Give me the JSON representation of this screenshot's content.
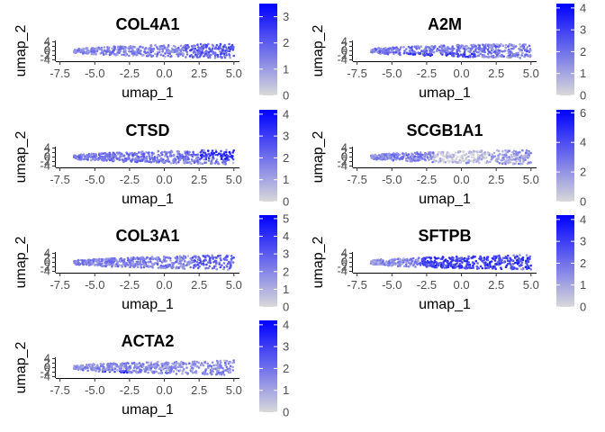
{
  "chart_data": [
    {
      "type": "scatter",
      "title": "COL4A1",
      "xlabel": "umap_1",
      "ylabel": "umap_2",
      "xticks": [
        "-7.5",
        "-5.0",
        "-2.5",
        "0.0",
        "2.5",
        "5.0"
      ],
      "yticks": [
        "4",
        "2",
        "0",
        "-2",
        "-4"
      ],
      "xlim": [
        -7.8,
        5.4
      ],
      "ylim": [
        -4.6,
        4.6
      ],
      "legend": {
        "ticks": [
          "3",
          "2",
          "1",
          "0"
        ],
        "max": 3.5,
        "low_color": "#d9d9d9",
        "high_color": "#0000ff"
      },
      "shape": {
        "x": [
          -6.5,
          5.0
        ],
        "half_height": [
          0.6,
          3.3
        ]
      },
      "clusters": [
        {
          "x": [
            -6.5,
            5.0
          ],
          "y": [
            -2.5,
            2.5
          ],
          "level": 0.4
        },
        {
          "x": [
            1.5,
            5.0
          ],
          "y": [
            -3,
            3
          ],
          "level": 0.55
        }
      ]
    },
    {
      "type": "scatter",
      "title": "A2M",
      "xlabel": "umap_1",
      "ylabel": "umap_2",
      "xticks": [
        "-7.5",
        "-5.0",
        "-2.5",
        "0.0",
        "2.5",
        "5.0"
      ],
      "yticks": [
        "4",
        "2",
        "0",
        "-2",
        "-4"
      ],
      "xlim": [
        -7.8,
        5.4
      ],
      "ylim": [
        -4.6,
        4.6
      ],
      "legend": {
        "ticks": [
          "4",
          "3",
          "2",
          "1",
          "0"
        ],
        "max": 4.2,
        "low_color": "#d9d9d9",
        "high_color": "#0000ff"
      },
      "shape": {
        "x": [
          -6.5,
          5.0
        ],
        "half_height": [
          0.6,
          3.3
        ]
      },
      "clusters": [
        {
          "x": [
            -6.5,
            5.0
          ],
          "y": [
            -2.5,
            2.5
          ],
          "level": 0.45
        },
        {
          "x": [
            -4.5,
            1.0
          ],
          "y": [
            -3.2,
            -1
          ],
          "level": 0.7
        }
      ]
    },
    {
      "type": "scatter",
      "title": "CTSD",
      "xlabel": "umap_1",
      "ylabel": "umap_2",
      "xticks": [
        "-7.5",
        "-5.0",
        "-2.5",
        "0.0",
        "2.5",
        "5.0"
      ],
      "yticks": [
        "4",
        "2",
        "0",
        "-2",
        "-4"
      ],
      "xlim": [
        -7.8,
        5.4
      ],
      "ylim": [
        -4.6,
        4.6
      ],
      "legend": {
        "ticks": [
          "4",
          "3",
          "2",
          "1",
          "0"
        ],
        "max": 4.2,
        "low_color": "#d9d9d9",
        "high_color": "#0000ff"
      },
      "shape": {
        "x": [
          -6.5,
          5.0
        ],
        "half_height": [
          0.6,
          3.3
        ]
      },
      "clusters": [
        {
          "x": [
            -6.5,
            5.0
          ],
          "y": [
            -2.5,
            2.5
          ],
          "level": 0.45
        },
        {
          "x": [
            2.5,
            5.0
          ],
          "y": [
            -1,
            3
          ],
          "level": 0.75
        }
      ]
    },
    {
      "type": "scatter",
      "title": "SCGB1A1",
      "xlabel": "umap_1",
      "ylabel": "umap_2",
      "xticks": [
        "-7.5",
        "-5.0",
        "-2.5",
        "0.0",
        "2.5",
        "5.0"
      ],
      "yticks": [
        "4",
        "2",
        "0",
        "-2",
        "-4"
      ],
      "xlim": [
        -7.8,
        5.4
      ],
      "ylim": [
        -4.6,
        4.6
      ],
      "legend": {
        "ticks": [
          "6",
          "4",
          "2",
          "0"
        ],
        "max": 6.2,
        "low_color": "#d9d9d9",
        "high_color": "#0000ff"
      },
      "shape": {
        "x": [
          -6.5,
          5.0
        ],
        "half_height": [
          0.6,
          3.3
        ]
      },
      "clusters": [
        {
          "x": [
            -6.5,
            -2.0
          ],
          "y": [
            -2.5,
            2.5
          ],
          "level": 0.4
        },
        {
          "x": [
            -2.0,
            2.0
          ],
          "y": [
            -2.5,
            2.5
          ],
          "level": 0.08
        },
        {
          "x": [
            2.0,
            5.0
          ],
          "y": [
            -2.5,
            2.5
          ],
          "level": 0.3
        }
      ]
    },
    {
      "type": "scatter",
      "title": "COL3A1",
      "xlabel": "umap_1",
      "ylabel": "umap_2",
      "xticks": [
        "-7.5",
        "-5.0",
        "-2.5",
        "0.0",
        "2.5",
        "5.0"
      ],
      "yticks": [
        "4",
        "2",
        "0",
        "-2",
        "-4"
      ],
      "xlim": [
        -7.8,
        5.4
      ],
      "ylim": [
        -4.6,
        4.6
      ],
      "legend": {
        "ticks": [
          "5",
          "4",
          "3",
          "2",
          "1",
          "0"
        ],
        "max": 5.2,
        "low_color": "#d9d9d9",
        "high_color": "#0000ff"
      },
      "shape": {
        "x": [
          -6.5,
          5.0
        ],
        "half_height": [
          0.6,
          3.3
        ]
      },
      "clusters": [
        {
          "x": [
            -6.5,
            5.0
          ],
          "y": [
            -2.5,
            2.5
          ],
          "level": 0.4
        },
        {
          "x": [
            2.0,
            5.0
          ],
          "y": [
            -3,
            3
          ],
          "level": 0.55
        }
      ]
    },
    {
      "type": "scatter",
      "title": "SFTPB",
      "xlabel": "umap_1",
      "ylabel": "umap_2",
      "xticks": [
        "-7.5",
        "-5.0",
        "-2.5",
        "0.0",
        "2.5",
        "5.0"
      ],
      "yticks": [
        "4",
        "2",
        "0",
        "-2",
        "-4"
      ],
      "xlim": [
        -7.8,
        5.4
      ],
      "ylim": [
        -4.6,
        4.6
      ],
      "legend": {
        "ticks": [
          "4",
          "3",
          "2",
          "1",
          "0"
        ],
        "max": 4.2,
        "low_color": "#d9d9d9",
        "high_color": "#0000ff"
      },
      "shape": {
        "x": [
          -6.5,
          5.0
        ],
        "half_height": [
          0.6,
          3.3
        ]
      },
      "clusters": [
        {
          "x": [
            -6.5,
            -3.0
          ],
          "y": [
            -2.5,
            2.5
          ],
          "level": 0.35
        },
        {
          "x": [
            -3.0,
            5.0
          ],
          "y": [
            -3,
            3
          ],
          "level": 0.7
        }
      ]
    },
    {
      "type": "scatter",
      "title": "ACTA2",
      "xlabel": "umap_1",
      "ylabel": "umap_2",
      "xticks": [
        "-7.5",
        "-5.0",
        "-2.5",
        "0.0",
        "2.5",
        "5.0"
      ],
      "yticks": [
        "4",
        "2",
        "0",
        "-2",
        "-4"
      ],
      "xlim": [
        -7.8,
        5.4
      ],
      "ylim": [
        -4.6,
        4.6
      ],
      "legend": {
        "ticks": [
          "4",
          "3",
          "2",
          "1",
          "0"
        ],
        "max": 4.2,
        "low_color": "#d9d9d9",
        "high_color": "#0000ff"
      },
      "shape": {
        "x": [
          -6.5,
          5.0
        ],
        "half_height": [
          0.6,
          3.3
        ]
      },
      "clusters": [
        {
          "x": [
            -6.5,
            5.0
          ],
          "y": [
            -2.5,
            2.5
          ],
          "level": 0.35
        },
        {
          "x": [
            -4.5,
            -2.5
          ],
          "y": [
            -3.5,
            -1.5
          ],
          "level": 0.8
        }
      ]
    }
  ]
}
